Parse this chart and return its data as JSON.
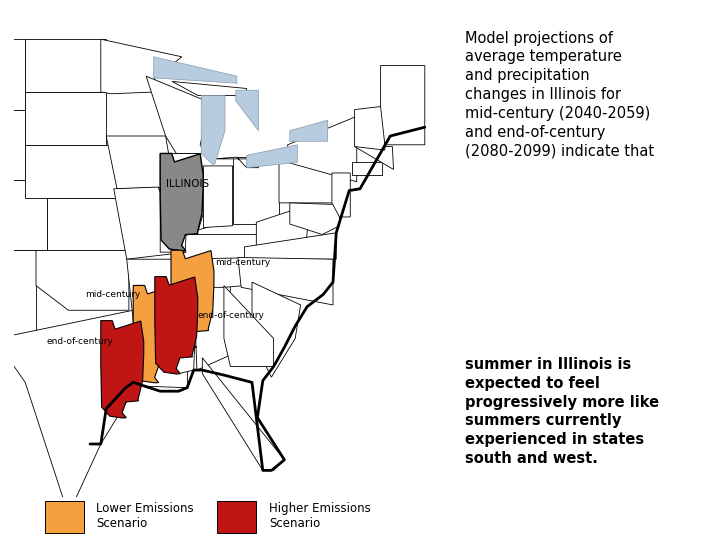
{
  "background_color": "#ffffff",
  "map_bg_color": "#d8dff0",
  "great_lakes_color": "#b8cce0",
  "state_fill": "#ffffff",
  "state_edge": "#000000",
  "state_lw": 0.6,
  "coast_lw": 1.8,
  "illinois_gray": "#888888",
  "legend_lower_color": "#f5a040",
  "legend_higher_color": "#c01515",
  "legend_lower_label": "Lower Emissions\nScenario",
  "legend_higher_label": "Higher Emissions\nScenario",
  "map_label_illinois": "ILLINOIS",
  "label_mid_left": "mid-century",
  "label_end_left": "end-of-century",
  "label_mid_right": "mid-century",
  "label_end_right": "end-of-century",
  "text_normal": "Model projections of\naverage temperature\nand precipitation\nchanges in Illinois for\nmid-century (2040-2059)\nand end-of-century\n(2080-2099) indicate that\n",
  "text_bold": "summer in Illinois is\nexpected to feel\nprogressively more like\nsummers currently\nexperienced in states\nsouth and west.",
  "text_color": "#000000",
  "fig_width": 7.2,
  "fig_height": 5.4,
  "dpi": 100,
  "lon_min": -105,
  "lon_max": -65,
  "lat_min": 23,
  "lat_max": 50
}
